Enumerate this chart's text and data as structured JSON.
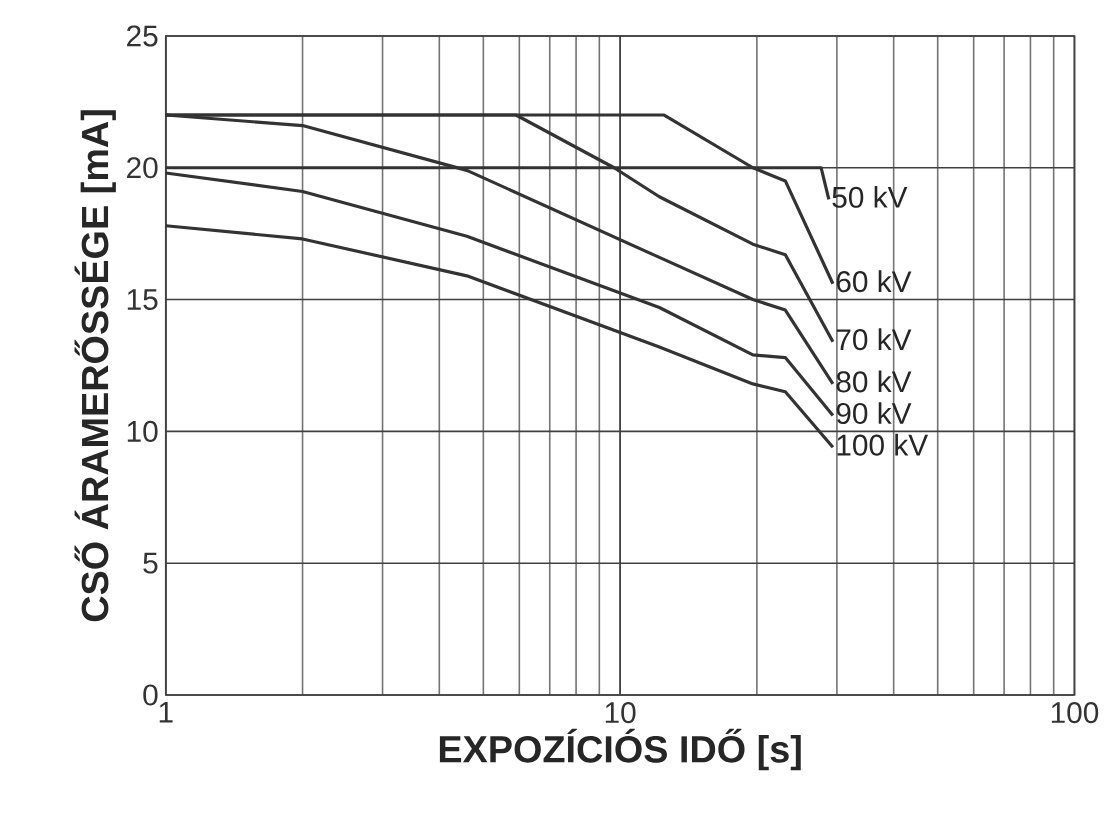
{
  "chart_data": {
    "type": "line",
    "xlabel": "EXPOZÍCIÓS IDŐ [s]",
    "ylabel": "CSŐ ÁRAMERŐSSÉGE [mA]",
    "log": "x",
    "grid": true,
    "xlim": [
      1,
      100
    ],
    "xticks": [
      1,
      10,
      100
    ],
    "ylim": [
      0,
      25
    ],
    "yticks": [
      0,
      5,
      10,
      15,
      20,
      25
    ],
    "line_style": "solid",
    "marker": "none",
    "series": [
      {
        "name": "50 kV",
        "color": "#333333",
        "x": [
          1,
          27.7,
          28.8
        ],
        "values": [
          20,
          20,
          18.8
        ]
      },
      {
        "name": "60 kV",
        "color": "#333333",
        "x": [
          1,
          12.5,
          19.6,
          23.1,
          29.4
        ],
        "values": [
          22,
          22,
          20,
          19.5,
          15.6
        ]
      },
      {
        "name": "70 kV",
        "color": "#333333",
        "x": [
          1,
          5.9,
          9.7,
          12.2,
          19.6,
          23.1,
          29.4
        ],
        "values": [
          22,
          22,
          20,
          18.9,
          17.1,
          16.7,
          13.4
        ]
      },
      {
        "name": "80 kV",
        "color": "#333333",
        "x": [
          1,
          2,
          4.6,
          12.2,
          19.6,
          23.1,
          29.4
        ],
        "values": [
          22,
          21.6,
          19.9,
          16.6,
          15,
          14.6,
          11.8
        ]
      },
      {
        "name": "90 kV",
        "color": "#333333",
        "x": [
          1,
          2,
          4.6,
          12.2,
          19.6,
          23.1,
          29.4
        ],
        "values": [
          19.8,
          19.1,
          17.4,
          14.7,
          12.9,
          12.8,
          10.6
        ]
      },
      {
        "name": "100 kV",
        "color": "#333333",
        "x": [
          1,
          2,
          4.6,
          12.2,
          19.6,
          23.1,
          29.4
        ],
        "values": [
          17.8,
          17.3,
          15.9,
          13.2,
          11.8,
          11.5,
          9.4
        ]
      }
    ]
  }
}
